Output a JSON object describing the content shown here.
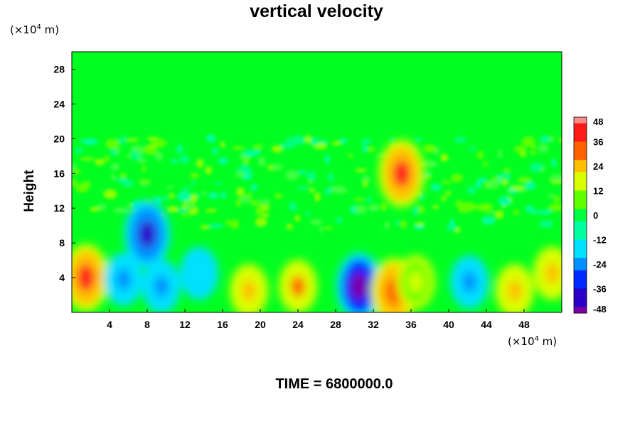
{
  "chart_data": {
    "type": "heatmap",
    "title": "vertical velocity",
    "ylabel": "Height",
    "x_unit_prefix": "(×10",
    "x_unit_exp": "4",
    "x_unit_suffix": " m)",
    "y_unit_prefix": "(×10",
    "y_unit_exp": "4",
    "y_unit_suffix": " m)",
    "xlim": [
      0,
      52
    ],
    "ylim": [
      0,
      30
    ],
    "x_ticks": [
      "4",
      "8",
      "12",
      "16",
      "20",
      "24",
      "28",
      "32",
      "36",
      "40",
      "44",
      "48"
    ],
    "y_ticks": [
      "4",
      "8",
      "12",
      "16",
      "20",
      "24",
      "28"
    ],
    "colorbar": {
      "range": [
        -48,
        48
      ],
      "ticks": [
        "48",
        "36",
        "24",
        "12",
        "0",
        "-12",
        "-24",
        "-36",
        "-48"
      ],
      "colors_low_to_high": [
        "#7a00a8",
        "#2a00c8",
        "#0028ff",
        "#0090ff",
        "#00e0ff",
        "#00ffa0",
        "#00ff40",
        "#60ff00",
        "#d8ff00",
        "#ffc000",
        "#ff6000",
        "#ff1a1a",
        "#ff8a8a"
      ]
    },
    "features": [
      {
        "x": 1.5,
        "y": 4.0,
        "value": 40
      },
      {
        "x": 5.5,
        "y": 3.8,
        "value": -26
      },
      {
        "x": 9.5,
        "y": 3.0,
        "value": -22
      },
      {
        "x": 13.5,
        "y": 4.5,
        "value": -20
      },
      {
        "x": 18.8,
        "y": 2.5,
        "value": 26
      },
      {
        "x": 24.0,
        "y": 3.0,
        "value": 30
      },
      {
        "x": 30.5,
        "y": 3.0,
        "value": -46
      },
      {
        "x": 34.2,
        "y": 2.4,
        "value": 34
      },
      {
        "x": 36.5,
        "y": 3.5,
        "value": 14
      },
      {
        "x": 42.2,
        "y": 3.5,
        "value": -24
      },
      {
        "x": 47.0,
        "y": 2.5,
        "value": 24
      },
      {
        "x": 51.0,
        "y": 4.5,
        "value": 22
      },
      {
        "x": 35.0,
        "y": 16.0,
        "value": 36
      },
      {
        "x": 8.0,
        "y": 9.0,
        "value": -40
      }
    ]
  },
  "time_label": "TIME = 6800000.0"
}
